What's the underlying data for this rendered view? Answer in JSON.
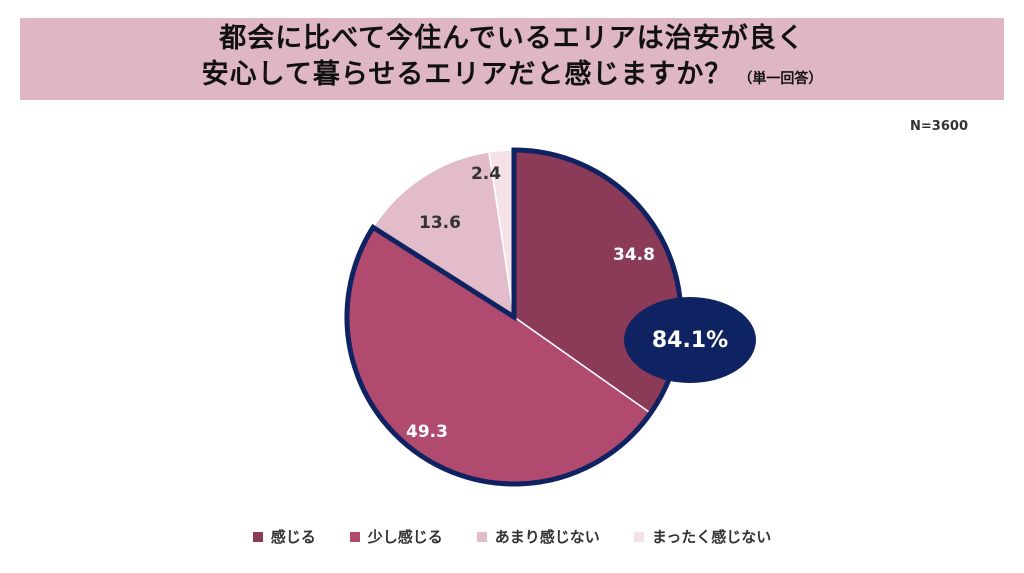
{
  "title": {
    "line1": "都会に比べて今住んでいるエリアは治安が良く",
    "line2": "安心して暮らせるエリアだと感じますか？",
    "suffix": "（単一回答）"
  },
  "sample_size": "N=3600",
  "chart_data": {
    "type": "pie",
    "categories": [
      "感じる",
      "少し感じる",
      "あまり感じない",
      "まったく感じない"
    ],
    "values": [
      34.8,
      49.3,
      13.6,
      2.4
    ],
    "value_labels": [
      "34.8",
      "49.3",
      "13.6",
      "2.4"
    ],
    "colors": [
      "#8b3a58",
      "#b04a6e",
      "#e2bccb",
      "#f5e1e8"
    ],
    "label_colors": [
      "#ffffff",
      "#ffffff",
      "#333333",
      "#333333"
    ],
    "highlight_color": "#0f2261",
    "highlighted_categories": [
      "感じる",
      "少し感じる"
    ],
    "callout": {
      "text": "84.1%",
      "color": "#0f2261"
    },
    "start_angle_deg": 0,
    "direction": "clockwise",
    "legend_position": "bottom"
  }
}
